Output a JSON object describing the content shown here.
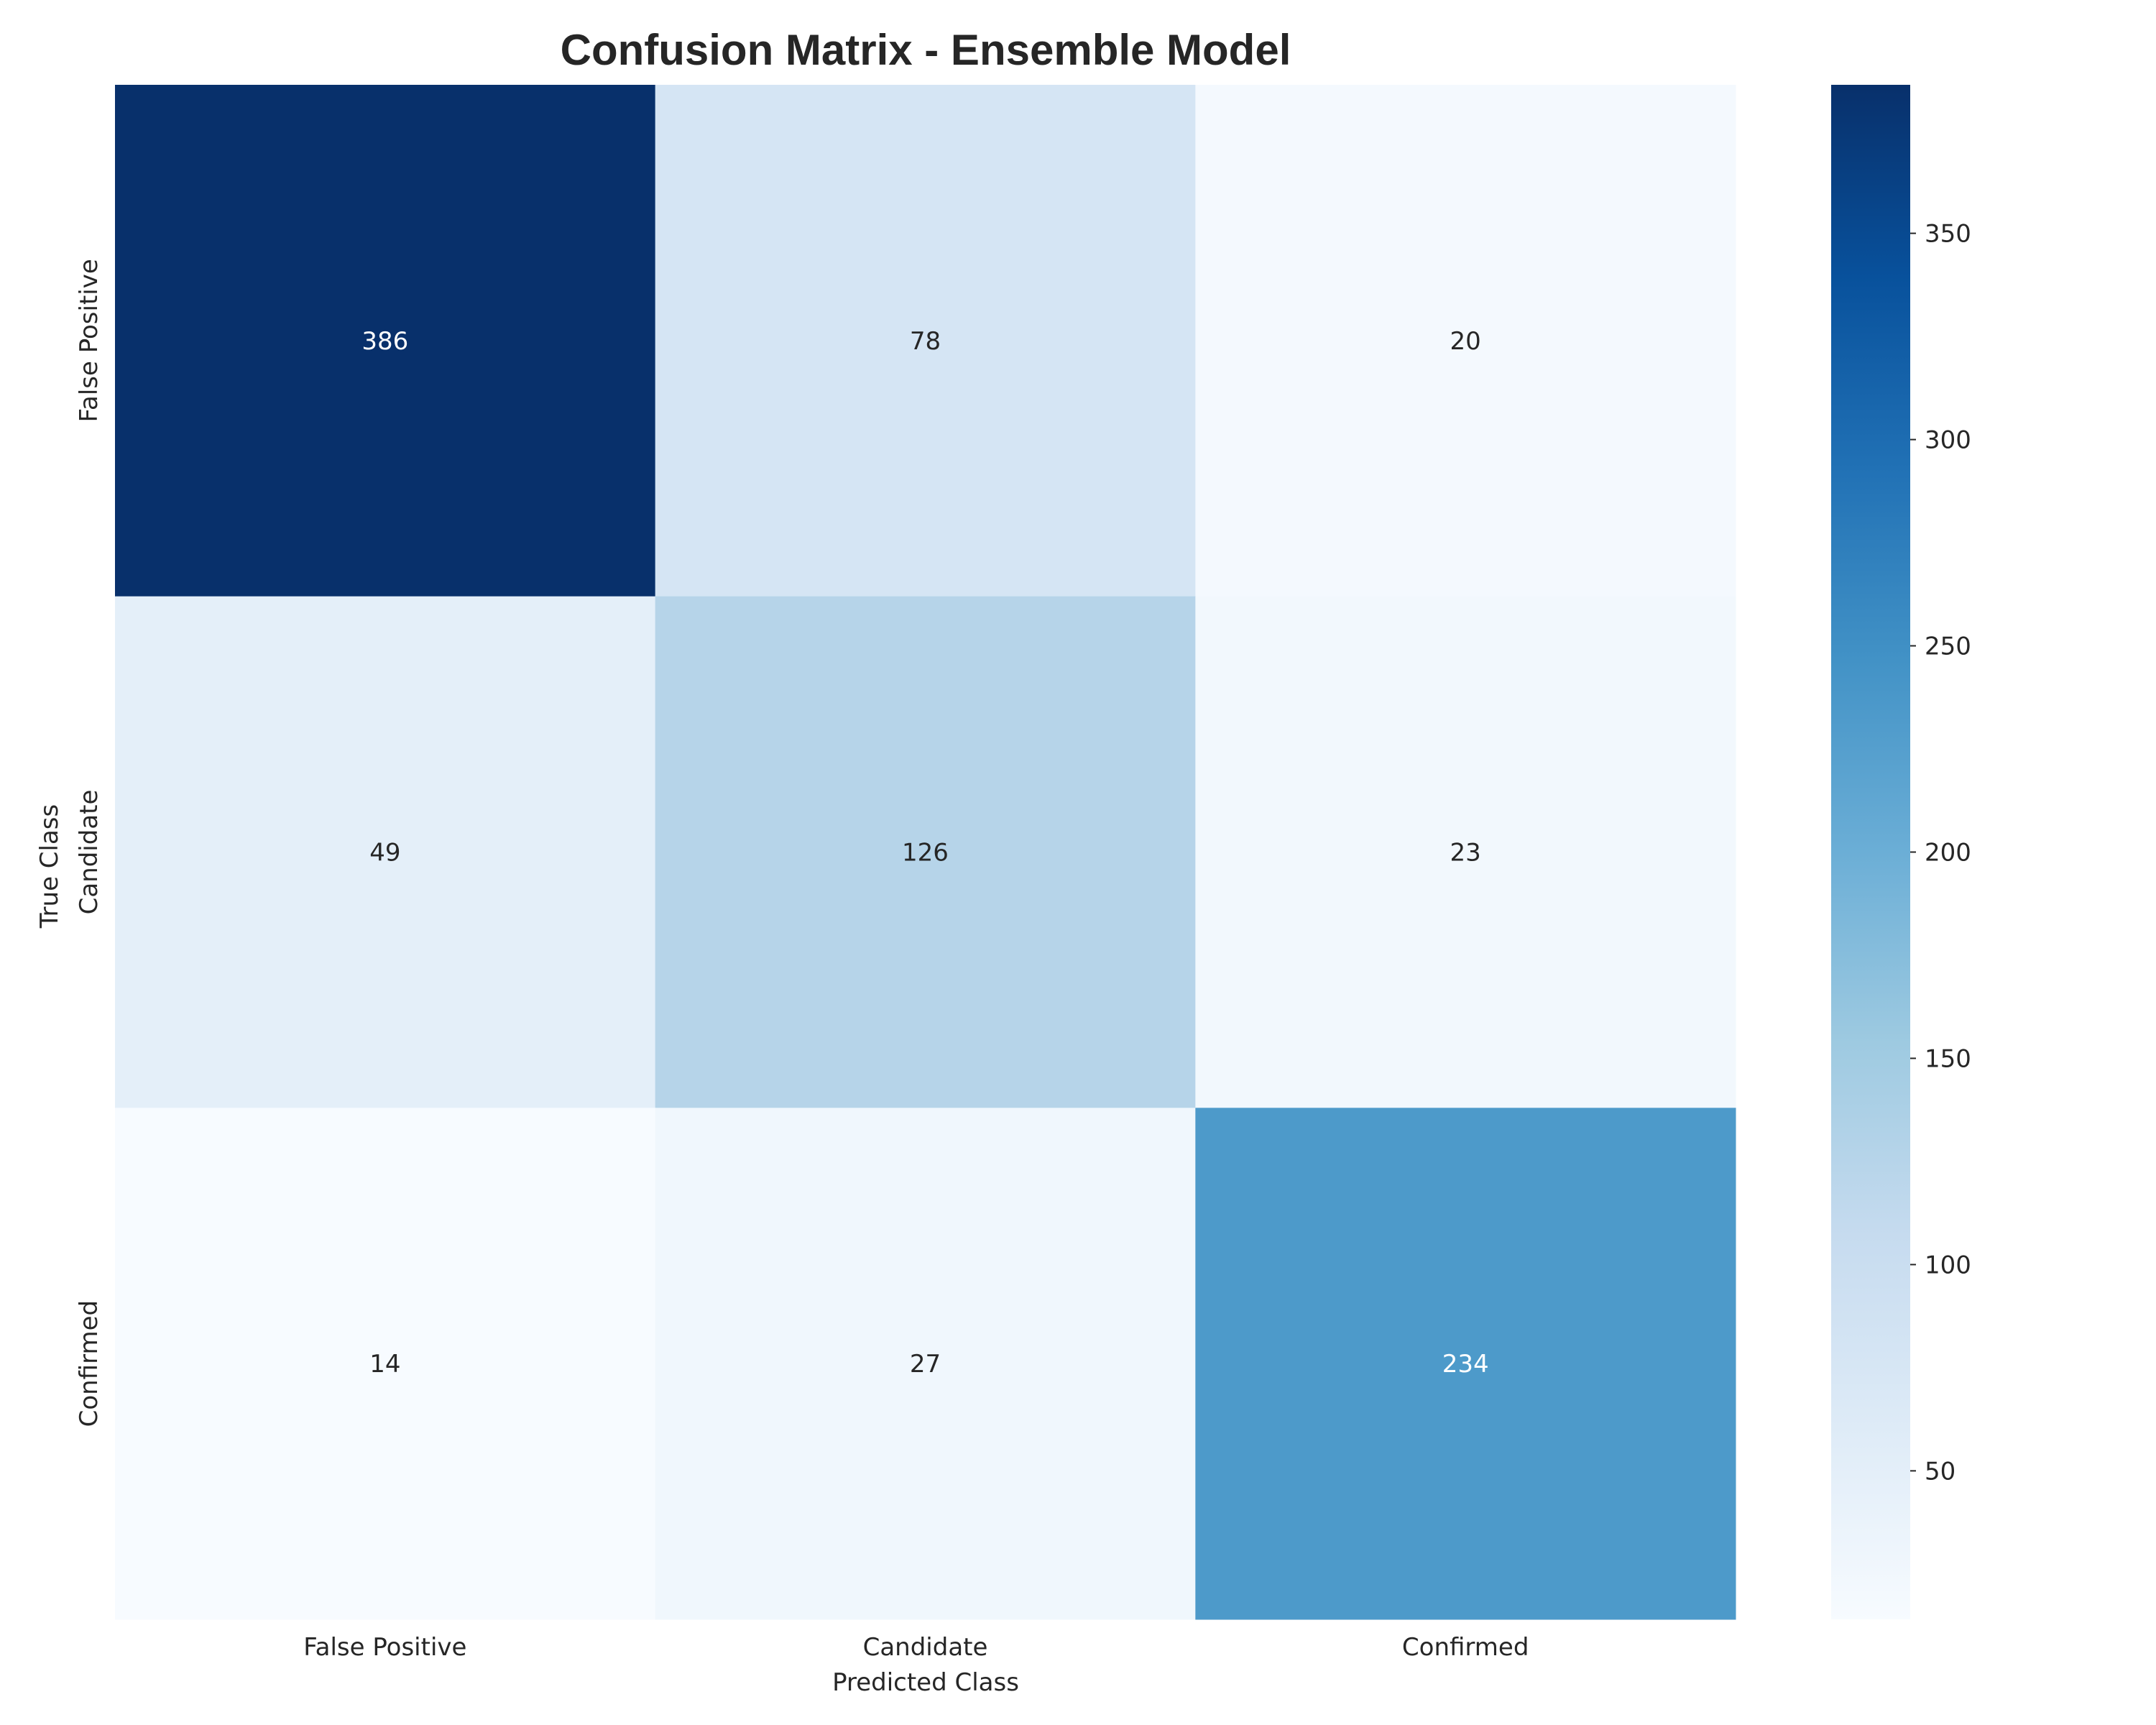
{
  "chart_data": {
    "type": "heatmap",
    "title": "Confusion Matrix - Ensemble Model",
    "xlabel": "Predicted Class",
    "ylabel": "True Class",
    "x_categories": [
      "False Positive",
      "Candidate",
      "Confirmed"
    ],
    "y_categories": [
      "False Positive",
      "Candidate",
      "Confirmed"
    ],
    "values": [
      [
        386,
        78,
        20
      ],
      [
        49,
        126,
        23
      ],
      [
        14,
        27,
        234
      ]
    ],
    "colormap": "Blues",
    "color_range": [
      14,
      386
    ],
    "colorbar_ticks": [
      50,
      100,
      150,
      200,
      250,
      300,
      350
    ],
    "grid": false
  }
}
